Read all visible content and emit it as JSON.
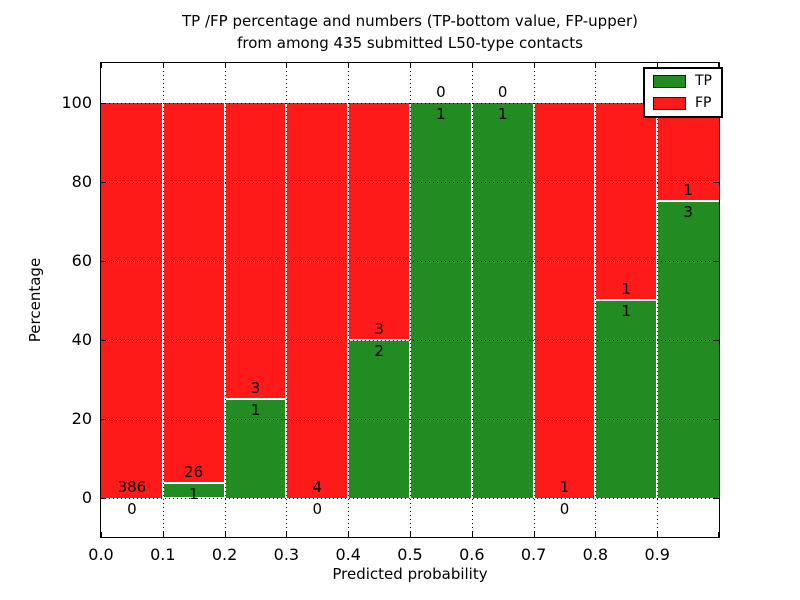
{
  "chart_data": {
    "type": "bar",
    "stacked": true,
    "title_line1": "TP /FP percentage and numbers (TP-bottom value, FP-upper)",
    "title_line2": "from among 435 submitted L50-type contacts",
    "xlabel": "Predicted probability",
    "ylabel": "Percentage",
    "xlim": [
      0.0,
      1.0
    ],
    "ylim": [
      -10,
      110
    ],
    "x_ticks": [
      "0.0",
      "0.1",
      "0.2",
      "0.3",
      "0.4",
      "0.5",
      "0.6",
      "0.7",
      "0.8",
      "0.9"
    ],
    "y_ticks": [
      0,
      20,
      40,
      60,
      80,
      100
    ],
    "grid": "dotted black, on top of bars",
    "colors": {
      "tp": "#228B22",
      "fp": "#FF1A1A",
      "grid": "#000000",
      "background": "#FFFFFF"
    },
    "legend": {
      "position": "upper-right",
      "entries": [
        {
          "label": "TP",
          "color": "#228B22"
        },
        {
          "label": "FP",
          "color": "#FF1A1A"
        }
      ]
    },
    "bins": [
      {
        "x0": 0.0,
        "x1": 0.1,
        "tp": 0,
        "fp": 386,
        "tp_pct": 0
      },
      {
        "x0": 0.1,
        "x1": 0.2,
        "tp": 1,
        "fp": 26,
        "tp_pct": 3.704
      },
      {
        "x0": 0.2,
        "x1": 0.3,
        "tp": 1,
        "fp": 3,
        "tp_pct": 25
      },
      {
        "x0": 0.3,
        "x1": 0.4,
        "tp": 0,
        "fp": 4,
        "tp_pct": 0
      },
      {
        "x0": 0.4,
        "x1": 0.5,
        "tp": 2,
        "fp": 3,
        "tp_pct": 40
      },
      {
        "x0": 0.5,
        "x1": 0.6,
        "tp": 1,
        "fp": 0,
        "tp_pct": 100
      },
      {
        "x0": 0.6,
        "x1": 0.7,
        "tp": 1,
        "fp": 0,
        "tp_pct": 100
      },
      {
        "x0": 0.7,
        "x1": 0.8,
        "tp": 0,
        "fp": 1,
        "tp_pct": 0
      },
      {
        "x0": 0.8,
        "x1": 0.9,
        "tp": 1,
        "fp": 1,
        "tp_pct": 50
      },
      {
        "x0": 0.9,
        "x1": 1.0,
        "tp": 3,
        "fp": 1,
        "tp_pct": 75
      }
    ]
  }
}
